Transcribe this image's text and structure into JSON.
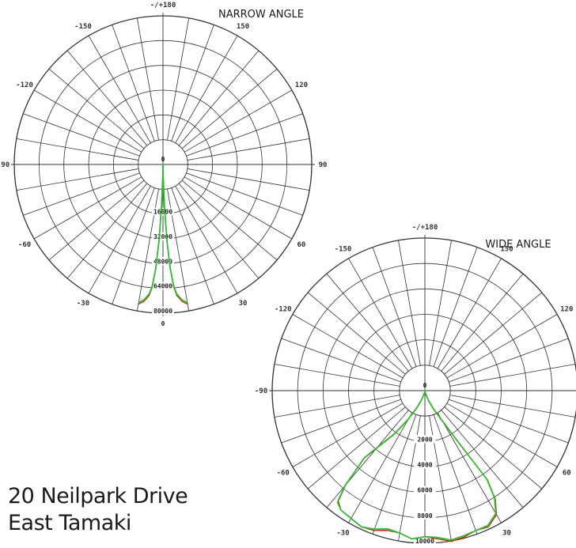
{
  "address": {
    "line1": "20 Neilpark Drive",
    "line2": "East Tamaki"
  },
  "chart_data": [
    {
      "type": "polar",
      "title": "NARROW ANGLE",
      "angle_labels": [
        {
          "angle": 180,
          "text": "-/+180"
        },
        {
          "angle": 150,
          "text": "150"
        },
        {
          "angle": 120,
          "text": "120"
        },
        {
          "angle": 90,
          "text": "90"
        },
        {
          "angle": 60,
          "text": "60"
        },
        {
          "angle": 30,
          "text": "30"
        },
        {
          "angle": -30,
          "text": "-30"
        },
        {
          "angle": -60,
          "text": "-60"
        },
        {
          "angle": -90,
          "text": "-90"
        },
        {
          "angle": -120,
          "text": "-120"
        },
        {
          "angle": -150,
          "text": "-150"
        }
      ],
      "center_label": "0",
      "bottom_label": "0",
      "radial_labels": [
        "16000",
        "32000",
        "48000",
        "64000",
        "80000"
      ],
      "radial_max": 80000,
      "inner_circle_fraction": 0.1667,
      "series": [
        {
          "color": "#cc2200",
          "points": [
            [
              -10,
              83000
            ],
            [
              -8,
              81000
            ],
            [
              -6,
              77000
            ],
            [
              -5,
              72000
            ],
            [
              -4,
              62000
            ],
            [
              -3,
              46000
            ],
            [
              -2,
              26000
            ],
            [
              -1,
              7000
            ],
            [
              0,
              0
            ],
            [
              1,
              7000
            ],
            [
              2,
              26000
            ],
            [
              3,
              46000
            ],
            [
              4,
              62000
            ],
            [
              5,
              72000
            ],
            [
              6,
              77000
            ],
            [
              8,
              81000
            ],
            [
              10,
              83000
            ]
          ]
        },
        {
          "color": "#33bb33",
          "points": [
            [
              -10,
              82000
            ],
            [
              -8,
              80000
            ],
            [
              -6,
              76000
            ],
            [
              -5,
              71000
            ],
            [
              -4,
              61000
            ],
            [
              -3,
              45000
            ],
            [
              -2,
              25000
            ],
            [
              -1,
              6000
            ],
            [
              0,
              0
            ],
            [
              1,
              6000
            ],
            [
              2,
              25000
            ],
            [
              3,
              45000
            ],
            [
              4,
              61000
            ],
            [
              5,
              71000
            ],
            [
              6,
              76000
            ],
            [
              8,
              80000
            ],
            [
              10,
              82000
            ]
          ]
        }
      ]
    },
    {
      "type": "polar",
      "title": "WIDE ANGLE",
      "angle_labels": [
        {
          "angle": 180,
          "text": "-/+180"
        },
        {
          "angle": 150,
          "text": "150"
        },
        {
          "angle": 120,
          "text": "120"
        },
        {
          "angle": 90,
          "text": "90"
        },
        {
          "angle": 60,
          "text": "60"
        },
        {
          "angle": 30,
          "text": "30"
        },
        {
          "angle": -30,
          "text": "-30"
        },
        {
          "angle": -60,
          "text": "-60"
        },
        {
          "angle": -90,
          "text": "-90"
        },
        {
          "angle": -120,
          "text": "-120"
        },
        {
          "angle": -150,
          "text": "-150"
        }
      ],
      "center_label": "0",
      "bottom_label": "",
      "radial_labels": [
        "2000",
        "4000",
        "6000",
        "8000",
        "10000"
      ],
      "radial_max": 10000,
      "inner_circle_fraction": 0.1667,
      "series": [
        {
          "color": "#cc2200",
          "points": [
            [
              -42,
              6500
            ],
            [
              -40,
              8800
            ],
            [
              -38,
              10000
            ],
            [
              -35,
              10400
            ],
            [
              -30,
              10500
            ],
            [
              -25,
              10700
            ],
            [
              -20,
              10600
            ],
            [
              -15,
              10300
            ],
            [
              -10,
              10300
            ],
            [
              -5,
              10600
            ],
            [
              0,
              10400
            ],
            [
              5,
              10600
            ],
            [
              10,
              10900
            ],
            [
              15,
              10800
            ],
            [
              20,
              10600
            ],
            [
              25,
              10700
            ],
            [
              30,
              10200
            ],
            [
              33,
              9200
            ],
            [
              35,
              7800
            ],
            [
              33,
              4500
            ],
            [
              30,
              2600
            ],
            [
              25,
              1500
            ],
            [
              20,
              800
            ],
            [
              10,
              200
            ],
            [
              0,
              0
            ],
            [
              -10,
              200
            ],
            [
              -20,
              800
            ],
            [
              -25,
              1400
            ],
            [
              -30,
              2400
            ],
            [
              -35,
              3800
            ],
            [
              -40,
              5400
            ],
            [
              -42,
              6500
            ]
          ]
        },
        {
          "color": "#33bb33",
          "points": [
            [
              -42,
              6400
            ],
            [
              -40,
              8900
            ],
            [
              -38,
              10100
            ],
            [
              -35,
              10400
            ],
            [
              -30,
              10500
            ],
            [
              -25,
              10700
            ],
            [
              -20,
              10500
            ],
            [
              -15,
              10200
            ],
            [
              -10,
              10300
            ],
            [
              -5,
              10600
            ],
            [
              0,
              10400
            ],
            [
              5,
              10500
            ],
            [
              10,
              10800
            ],
            [
              15,
              10700
            ],
            [
              20,
              10600
            ],
            [
              25,
              10600
            ],
            [
              30,
              10100
            ],
            [
              33,
              9100
            ],
            [
              35,
              7700
            ],
            [
              33,
              4400
            ],
            [
              30,
              2500
            ],
            [
              25,
              1400
            ],
            [
              20,
              700
            ],
            [
              10,
              150
            ],
            [
              0,
              0
            ],
            [
              -10,
              150
            ],
            [
              -20,
              700
            ],
            [
              -25,
              1300
            ],
            [
              -30,
              2300
            ],
            [
              -35,
              3700
            ],
            [
              -40,
              5300
            ],
            [
              -42,
              6400
            ]
          ]
        }
      ]
    }
  ]
}
